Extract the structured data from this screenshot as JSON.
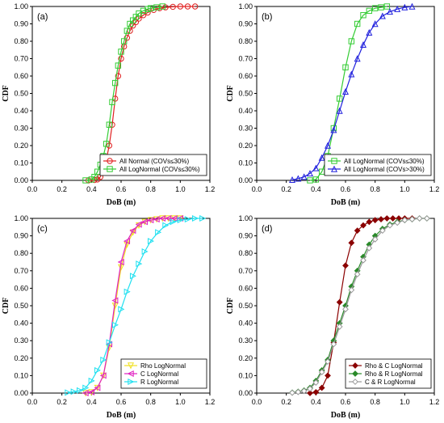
{
  "chart_data": [
    {
      "panel_label": "(a)",
      "type": "line",
      "xlabel": "DoB (m)",
      "ylabel": "CDF",
      "xlim": [
        0,
        1.2
      ],
      "ylim": [
        0,
        1
      ],
      "xticks": [
        "0.0",
        "0.2",
        "0.4",
        "0.6",
        "0.8",
        "1.0",
        "1.2"
      ],
      "yticks": [
        "0.00",
        "0.10",
        "0.20",
        "0.30",
        "0.40",
        "0.50",
        "0.60",
        "0.70",
        "0.80",
        "0.90",
        "1.00"
      ],
      "legend_position": "bottom-right",
      "series": [
        {
          "name": "All Normal (COVs≤30%)",
          "color": "#e02020",
          "marker": "circle",
          "x": [
            0.38,
            0.42,
            0.44,
            0.46,
            0.48,
            0.5,
            0.52,
            0.54,
            0.56,
            0.58,
            0.6,
            0.62,
            0.64,
            0.66,
            0.68,
            0.7,
            0.72,
            0.75,
            0.78,
            0.82,
            0.86,
            0.9,
            0.95,
            1.0,
            1.05,
            1.1
          ],
          "y": [
            0.0,
            0.002,
            0.005,
            0.02,
            0.06,
            0.12,
            0.2,
            0.32,
            0.47,
            0.6,
            0.7,
            0.77,
            0.82,
            0.86,
            0.89,
            0.91,
            0.93,
            0.95,
            0.965,
            0.98,
            0.99,
            0.995,
            0.998,
            1.0,
            1.0,
            1.0
          ]
        },
        {
          "name": "All LogNormal (COVs≤30%)",
          "color": "#33cc33",
          "marker": "square",
          "x": [
            0.36,
            0.4,
            0.42,
            0.44,
            0.46,
            0.48,
            0.5,
            0.52,
            0.54,
            0.56,
            0.58,
            0.6,
            0.62,
            0.64,
            0.66,
            0.68,
            0.7,
            0.72,
            0.75,
            0.78,
            0.8,
            0.84,
            0.88
          ],
          "y": [
            0.0,
            0.005,
            0.02,
            0.05,
            0.09,
            0.14,
            0.21,
            0.32,
            0.45,
            0.56,
            0.66,
            0.74,
            0.8,
            0.86,
            0.9,
            0.92,
            0.94,
            0.96,
            0.975,
            0.985,
            0.99,
            0.995,
            1.0
          ]
        }
      ]
    },
    {
      "panel_label": "(b)",
      "type": "line",
      "xlabel": "DoB (m)",
      "ylabel": "CDF",
      "xlim": [
        0,
        1.2
      ],
      "ylim": [
        0,
        1
      ],
      "xticks": [
        "0.0",
        "0.2",
        "0.4",
        "0.6",
        "0.8",
        "1.0",
        "1.2"
      ],
      "yticks": [
        "0.00",
        "0.10",
        "0.20",
        "0.30",
        "0.40",
        "0.50",
        "0.60",
        "0.70",
        "0.80",
        "0.90",
        "1.00"
      ],
      "legend_position": "bottom-right",
      "series": [
        {
          "name": "All LogNormal (COVs≤30%)",
          "color": "#33cc33",
          "marker": "square",
          "x": [
            0.36,
            0.4,
            0.44,
            0.48,
            0.52,
            0.56,
            0.6,
            0.64,
            0.68,
            0.72,
            0.76,
            0.8,
            0.84,
            0.88
          ],
          "y": [
            0.0,
            0.005,
            0.05,
            0.14,
            0.3,
            0.47,
            0.65,
            0.8,
            0.9,
            0.95,
            0.975,
            0.99,
            0.995,
            1.0
          ]
        },
        {
          "name": "All LogNormal (COVs>30%)",
          "color": "#2020dd",
          "marker": "triangle",
          "x": [
            0.24,
            0.28,
            0.32,
            0.36,
            0.4,
            0.44,
            0.48,
            0.52,
            0.56,
            0.6,
            0.64,
            0.68,
            0.72,
            0.76,
            0.8,
            0.85,
            0.9,
            0.95,
            1.0,
            1.05
          ],
          "y": [
            0.003,
            0.01,
            0.02,
            0.04,
            0.07,
            0.13,
            0.2,
            0.29,
            0.4,
            0.51,
            0.61,
            0.7,
            0.78,
            0.85,
            0.9,
            0.945,
            0.97,
            0.985,
            0.995,
            1.0
          ]
        }
      ]
    },
    {
      "panel_label": "(c)",
      "type": "line",
      "xlabel": "DoB (m)",
      "ylabel": "CDF",
      "xlim": [
        0,
        1.2
      ],
      "ylim": [
        0,
        1
      ],
      "xticks": [
        "0.0",
        "0.2",
        "0.4",
        "0.6",
        "0.8",
        "1.0",
        "1.2"
      ],
      "yticks": [
        "0.00",
        "0.10",
        "0.20",
        "0.30",
        "0.40",
        "0.50",
        "0.60",
        "0.70",
        "0.80",
        "0.90",
        "1.00"
      ],
      "legend_position": "bottom-right",
      "series": [
        {
          "name": "Rho LogNormal",
          "color": "#f0e020",
          "marker": "triangle-down",
          "x": [
            0.36,
            0.4,
            0.44,
            0.48,
            0.52,
            0.56,
            0.6,
            0.64,
            0.68,
            0.72,
            0.76,
            0.8,
            0.84,
            0.88,
            0.92,
            0.96,
            1.0
          ],
          "y": [
            0.0,
            0.005,
            0.03,
            0.1,
            0.26,
            0.5,
            0.72,
            0.85,
            0.92,
            0.96,
            0.98,
            0.99,
            0.995,
            1.0,
            1.0,
            1.0,
            1.0
          ]
        },
        {
          "name": "C LogNormal",
          "color": "#e020c0",
          "marker": "triangle-left",
          "x": [
            0.36,
            0.4,
            0.44,
            0.48,
            0.52,
            0.56,
            0.6,
            0.64,
            0.68,
            0.72,
            0.76,
            0.8,
            0.84,
            0.88,
            0.92,
            0.96,
            1.0
          ],
          "y": [
            0.0,
            0.005,
            0.03,
            0.1,
            0.28,
            0.53,
            0.75,
            0.87,
            0.93,
            0.965,
            0.98,
            0.99,
            0.995,
            1.0,
            1.0,
            1.0,
            1.0
          ]
        },
        {
          "name": "R LogNormal",
          "color": "#20e0f0",
          "marker": "triangle-right",
          "x": [
            0.24,
            0.28,
            0.32,
            0.36,
            0.4,
            0.44,
            0.48,
            0.52,
            0.56,
            0.6,
            0.64,
            0.68,
            0.72,
            0.76,
            0.8,
            0.85,
            0.9,
            0.95,
            1.0,
            1.05,
            1.1,
            1.15
          ],
          "y": [
            0.003,
            0.008,
            0.015,
            0.03,
            0.07,
            0.13,
            0.19,
            0.29,
            0.39,
            0.48,
            0.58,
            0.67,
            0.74,
            0.81,
            0.87,
            0.92,
            0.96,
            0.98,
            0.99,
            0.995,
            1.0,
            1.0
          ]
        }
      ]
    },
    {
      "panel_label": "(d)",
      "type": "line",
      "xlabel": "DoB (m)",
      "ylabel": "CDF",
      "xlim": [
        0,
        1.2
      ],
      "ylim": [
        0,
        1
      ],
      "xticks": [
        "0.0",
        "0.2",
        "0.4",
        "0.6",
        "0.8",
        "1.0",
        "1.2"
      ],
      "yticks": [
        "0.00",
        "0.10",
        "0.20",
        "0.30",
        "0.40",
        "0.50",
        "0.60",
        "0.70",
        "0.80",
        "0.90",
        "1.00"
      ],
      "legend_position": "bottom-right",
      "series": [
        {
          "name": "Rho & C LogNormal",
          "color": "#8b0000",
          "marker": "diamond",
          "x": [
            0.36,
            0.4,
            0.44,
            0.48,
            0.52,
            0.56,
            0.6,
            0.64,
            0.68,
            0.72,
            0.76,
            0.8,
            0.84,
            0.88,
            0.92,
            0.96,
            1.0,
            1.05
          ],
          "y": [
            0.0,
            0.005,
            0.03,
            0.1,
            0.29,
            0.52,
            0.73,
            0.86,
            0.93,
            0.96,
            0.98,
            0.99,
            0.995,
            1.0,
            1.0,
            1.0,
            1.0,
            1.0
          ]
        },
        {
          "name": "Rho & R LogNormal",
          "color": "#2a8a2a",
          "marker": "diamond",
          "x": [
            0.24,
            0.28,
            0.32,
            0.36,
            0.4,
            0.44,
            0.48,
            0.52,
            0.56,
            0.6,
            0.64,
            0.68,
            0.72,
            0.76,
            0.8,
            0.85,
            0.9,
            0.95,
            1.0,
            1.05,
            1.1,
            1.15
          ],
          "y": [
            0.003,
            0.008,
            0.015,
            0.03,
            0.07,
            0.13,
            0.19,
            0.3,
            0.4,
            0.5,
            0.61,
            0.7,
            0.78,
            0.85,
            0.9,
            0.94,
            0.965,
            0.98,
            0.99,
            0.995,
            1.0,
            1.0
          ]
        },
        {
          "name": "C & R LogNormal",
          "color": "#999999",
          "marker": "diamond-open",
          "x": [
            0.24,
            0.28,
            0.32,
            0.36,
            0.4,
            0.44,
            0.48,
            0.52,
            0.56,
            0.6,
            0.64,
            0.68,
            0.72,
            0.76,
            0.8,
            0.85,
            0.9,
            0.95,
            1.0,
            1.05,
            1.1,
            1.15
          ],
          "y": [
            0.002,
            0.006,
            0.012,
            0.025,
            0.06,
            0.12,
            0.18,
            0.28,
            0.38,
            0.48,
            0.59,
            0.68,
            0.76,
            0.83,
            0.88,
            0.93,
            0.96,
            0.975,
            0.99,
            0.995,
            1.0,
            1.0
          ]
        }
      ]
    }
  ]
}
